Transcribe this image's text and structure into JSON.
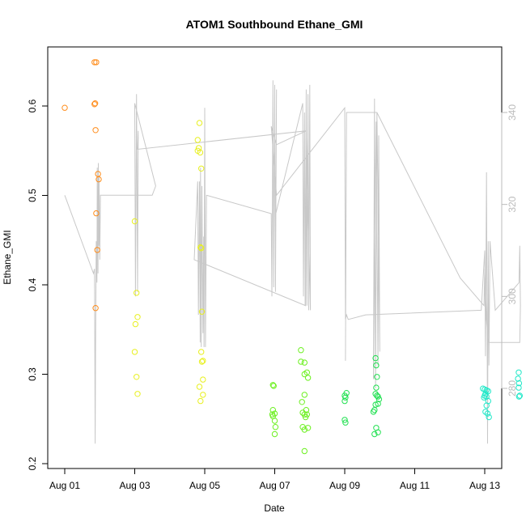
{
  "chart_data": {
    "type": "scatter",
    "title": "ATOM1 Southbound Ethane_GMI",
    "xlabel": "Date",
    "ylabel": "Ethane_GMI",
    "x_unit": "days after Aug 01",
    "x_ticks": [
      {
        "label": "Aug 01",
        "value": 0
      },
      {
        "label": "Aug 03",
        "value": 2
      },
      {
        "label": "Aug 05",
        "value": 4
      },
      {
        "label": "Aug 07",
        "value": 6
      },
      {
        "label": "Aug 09",
        "value": 8
      },
      {
        "label": "Aug 11",
        "value": 10
      },
      {
        "label": "Aug 13",
        "value": 12
      }
    ],
    "xlim": [
      -0.5,
      12.5
    ],
    "ylim": [
      0.2,
      0.665
    ],
    "y_ticks": [
      0.2,
      0.3,
      0.4,
      0.5,
      0.6
    ],
    "y_tick_labels": [
      "0.2",
      "0.3",
      "0.4",
      "0.5",
      "0.6"
    ],
    "y2_ticks": [
      280,
      300,
      320,
      340
    ],
    "y2_tick_labels": [
      "280",
      "300",
      "320",
      "340"
    ],
    "y2lim": [
      262,
      346
    ],
    "grid": false,
    "series": [
      {
        "color": "#FF8C1A",
        "points": [
          [
            0.0,
            0.598
          ],
          [
            0.85,
            0.649
          ],
          [
            0.9,
            0.649
          ],
          [
            0.85,
            0.602
          ],
          [
            0.87,
            0.603
          ],
          [
            0.88,
            0.573
          ],
          [
            0.95,
            0.524
          ],
          [
            0.97,
            0.518
          ],
          [
            0.9,
            0.48
          ],
          [
            0.93,
            0.439
          ],
          [
            0.88,
            0.374
          ]
        ]
      },
      {
        "color": "#E8F020",
        "points": [
          [
            2.0,
            0.471
          ],
          [
            2.05,
            0.391
          ],
          [
            2.08,
            0.364
          ],
          [
            2.02,
            0.356
          ],
          [
            2.0,
            0.325
          ],
          [
            2.05,
            0.297
          ],
          [
            2.08,
            0.278
          ],
          [
            3.85,
            0.581
          ],
          [
            3.8,
            0.562
          ],
          [
            3.83,
            0.553
          ],
          [
            3.87,
            0.548
          ],
          [
            3.9,
            0.53
          ],
          [
            3.8,
            0.55
          ],
          [
            3.88,
            0.442
          ],
          [
            3.9,
            0.441
          ],
          [
            3.92,
            0.37
          ],
          [
            3.85,
            0.286
          ],
          [
            3.9,
            0.325
          ],
          [
            3.95,
            0.315
          ],
          [
            3.92,
            0.314
          ],
          [
            3.95,
            0.294
          ],
          [
            3.95,
            0.277
          ],
          [
            3.88,
            0.27
          ]
        ]
      },
      {
        "color": "#6CF020",
        "points": [
          [
            5.95,
            0.288
          ],
          [
            5.97,
            0.287
          ],
          [
            5.95,
            0.26
          ],
          [
            6.0,
            0.256
          ],
          [
            5.93,
            0.255
          ],
          [
            5.95,
            0.253
          ],
          [
            6.0,
            0.248
          ],
          [
            6.02,
            0.241
          ],
          [
            6.0,
            0.233
          ],
          [
            6.75,
            0.327
          ],
          [
            6.75,
            0.314
          ],
          [
            6.85,
            0.313
          ],
          [
            6.85,
            0.3
          ],
          [
            6.92,
            0.302
          ],
          [
            6.95,
            0.296
          ],
          [
            6.78,
            0.269
          ],
          [
            6.85,
            0.277
          ],
          [
            6.8,
            0.257
          ],
          [
            6.85,
            0.255
          ],
          [
            6.9,
            0.26
          ],
          [
            6.88,
            0.252
          ],
          [
            6.8,
            0.241
          ],
          [
            6.85,
            0.238
          ],
          [
            6.95,
            0.24
          ],
          [
            6.85,
            0.214
          ],
          [
            6.92,
            0.255
          ]
        ]
      },
      {
        "color": "#20E050",
        "points": [
          [
            8.0,
            0.276
          ],
          [
            8.02,
            0.274
          ],
          [
            8.05,
            0.279
          ],
          [
            8.0,
            0.27
          ],
          [
            8.0,
            0.249
          ],
          [
            8.02,
            0.246
          ],
          [
            8.88,
            0.318
          ],
          [
            8.9,
            0.31
          ],
          [
            8.92,
            0.297
          ],
          [
            8.9,
            0.285
          ],
          [
            8.88,
            0.278
          ],
          [
            8.92,
            0.276
          ],
          [
            8.95,
            0.275
          ],
          [
            8.98,
            0.272
          ],
          [
            8.95,
            0.267
          ],
          [
            8.88,
            0.266
          ],
          [
            8.85,
            0.26
          ],
          [
            8.82,
            0.258
          ],
          [
            8.9,
            0.24
          ],
          [
            8.95,
            0.235
          ],
          [
            8.85,
            0.233
          ]
        ]
      },
      {
        "color": "#20E8C8",
        "points": [
          [
            11.95,
            0.284
          ],
          [
            12.0,
            0.283
          ],
          [
            12.05,
            0.282
          ],
          [
            12.1,
            0.281
          ],
          [
            12.02,
            0.278
          ],
          [
            12.0,
            0.276
          ],
          [
            11.98,
            0.274
          ],
          [
            12.05,
            0.275
          ],
          [
            12.1,
            0.27
          ],
          [
            12.05,
            0.265
          ],
          [
            12.02,
            0.258
          ],
          [
            12.08,
            0.256
          ],
          [
            12.12,
            0.252
          ],
          [
            12.97,
            0.302
          ],
          [
            12.95,
            0.295
          ],
          [
            12.98,
            0.29
          ],
          [
            12.97,
            0.285
          ],
          [
            13.0,
            0.276
          ],
          [
            12.98,
            0.275
          ]
        ]
      }
    ],
    "secondary_line": {
      "color": "#C8C8C8",
      "axis": "right",
      "points": [
        [
          0.0,
          322
        ],
        [
          0.82,
          305
        ],
        [
          0.85,
          306
        ],
        [
          0.87,
          268
        ],
        [
          0.88,
          289
        ],
        [
          0.9,
          312
        ],
        [
          0.92,
          303
        ],
        [
          0.93,
          328
        ],
        [
          0.95,
          305
        ],
        [
          0.96,
          329
        ],
        [
          0.97,
          311
        ],
        [
          0.98,
          326
        ],
        [
          1.0,
          308
        ],
        [
          1.02,
          322
        ],
        [
          2.5,
          322
        ],
        [
          2.6,
          324
        ],
        [
          2.0,
          342
        ],
        [
          2.02,
          300
        ],
        [
          2.05,
          344
        ],
        [
          2.08,
          301
        ],
        [
          2.1,
          336
        ],
        [
          2.08,
          332
        ],
        [
          6.9,
          336
        ],
        [
          6.88,
          298
        ],
        [
          3.7,
          308
        ],
        [
          3.8,
          325
        ],
        [
          3.82,
          296
        ],
        [
          3.85,
          325
        ],
        [
          3.87,
          290
        ],
        [
          3.88,
          328
        ],
        [
          3.9,
          289
        ],
        [
          3.92,
          324
        ],
        [
          3.95,
          292
        ],
        [
          3.97,
          313
        ],
        [
          3.98,
          289
        ],
        [
          4.0,
          341
        ],
        [
          4.02,
          289
        ],
        [
          4.05,
          322
        ],
        [
          5.9,
          318
        ],
        [
          5.92,
          300
        ],
        [
          5.95,
          347
        ],
        [
          5.97,
          302
        ],
        [
          6.0,
          346
        ],
        [
          6.02,
          301
        ],
        [
          6.05,
          345
        ],
        [
          6.03,
          318
        ],
        [
          6.8,
          342
        ],
        [
          6.82,
          300
        ],
        [
          6.85,
          340
        ],
        [
          6.87,
          298
        ],
        [
          6.9,
          345
        ],
        [
          6.92,
          298
        ],
        [
          6.95,
          344
        ],
        [
          6.97,
          297
        ],
        [
          7.0,
          346
        ],
        [
          7.02,
          297
        ],
        [
          6.95,
          318
        ],
        [
          6.9,
          336
        ],
        [
          6.05,
          333
        ],
        [
          5.9,
          337
        ],
        [
          6.05,
          322
        ],
        [
          8.0,
          341
        ],
        [
          8.02,
          295
        ],
        [
          8.05,
          296
        ],
        [
          8.1,
          295
        ],
        [
          8.6,
          296
        ],
        [
          11.9,
          297
        ],
        [
          12.0,
          310
        ],
        [
          12.02,
          287
        ],
        [
          12.05,
          327
        ],
        [
          12.08,
          268
        ],
        [
          12.1,
          312
        ],
        [
          12.12,
          285
        ],
        [
          12.15,
          312
        ],
        [
          12.3,
          297
        ],
        [
          12.98,
          303
        ],
        [
          13.0,
          311
        ],
        [
          13.02,
          298
        ],
        [
          13.0,
          290
        ],
        [
          12.1,
          290
        ],
        [
          12.05,
          295
        ],
        [
          12.0,
          306
        ],
        [
          11.98,
          298
        ],
        [
          11.3,
          304
        ],
        [
          8.92,
          340
        ],
        [
          8.88,
          280
        ],
        [
          8.85,
          343
        ],
        [
          8.82,
          282
        ],
        [
          8.9,
          338
        ],
        [
          8.95,
          285
        ],
        [
          8.97,
          335
        ],
        [
          9.0,
          288
        ],
        [
          8.92,
          340
        ],
        [
          8.05,
          340
        ],
        [
          8.02,
          286
        ]
      ]
    }
  }
}
